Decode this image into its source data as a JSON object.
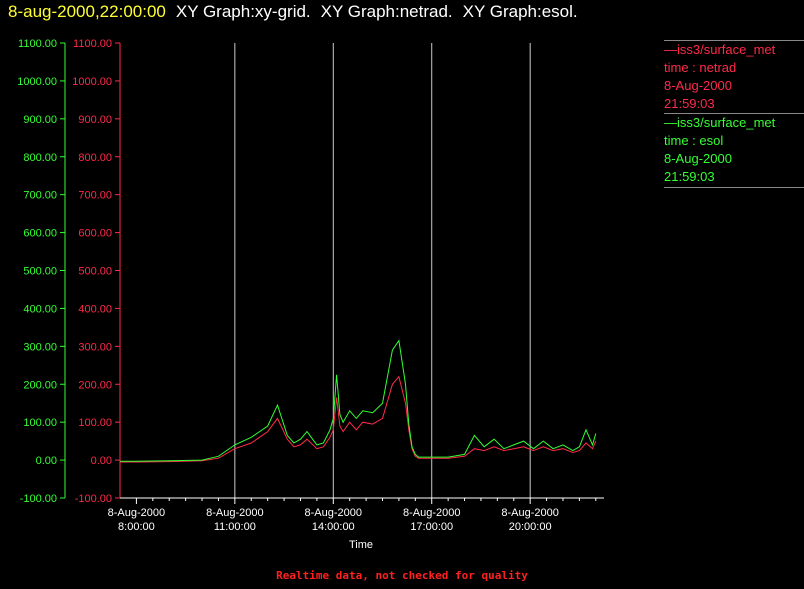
{
  "header": {
    "timestamp": "8-aug-2000,22:00:00",
    "graphs": [
      "XY Graph:xy-grid.",
      "XY Graph:netrad.",
      "XY Graph:esol."
    ]
  },
  "legend": [
    {
      "lines": [
        "—iss3/surface_met",
        "time : netrad",
        "8-Aug-2000",
        "21:59:03"
      ],
      "color": "#ff2a4a"
    },
    {
      "lines": [
        "—iss3/surface_met",
        "time : esol",
        "8-Aug-2000",
        "21:59:03"
      ],
      "color": "#33ff33"
    }
  ],
  "footer": "Realtime data, not checked for quality",
  "colors": {
    "netrad": "#ff2a4a",
    "esol": "#33ff33",
    "grid": "#ffffff",
    "background": "#000000"
  },
  "chart_data": {
    "type": "line",
    "xlabel": "Time",
    "ylim": [
      -100,
      1100
    ],
    "xlim": [
      7.5,
      22.25
    ],
    "grid": "vertical at time ticks",
    "yticks": [
      "-100.00",
      "0.00",
      "100.00",
      "200.00",
      "300.00",
      "400.00",
      "500.00",
      "600.00",
      "700.00",
      "800.00",
      "900.00",
      "1000.00",
      "1100.00"
    ],
    "xticks": [
      {
        "hour": 8,
        "date": "8-Aug-2000",
        "time": "8:00:00"
      },
      {
        "hour": 11,
        "date": "8-Aug-2000",
        "time": "11:00:00"
      },
      {
        "hour": 14,
        "date": "8-Aug-2000",
        "time": "14:00:00"
      },
      {
        "hour": 17,
        "date": "8-Aug-2000",
        "time": "17:00:00"
      },
      {
        "hour": 20,
        "date": "8-Aug-2000",
        "time": "20:00:00"
      }
    ],
    "series": [
      {
        "name": "time : netrad",
        "x": [
          7.5,
          8,
          9,
          10,
          10.5,
          11,
          11.5,
          12,
          12.3,
          12.6,
          12.8,
          13,
          13.2,
          13.5,
          13.7,
          13.9,
          14,
          14.1,
          14.2,
          14.3,
          14.5,
          14.7,
          14.9,
          15.2,
          15.5,
          15.8,
          16.0,
          16.2,
          16.3,
          16.4,
          16.5,
          16.6,
          16.75,
          17,
          17.5,
          18,
          18.3,
          18.6,
          18.9,
          19.2,
          19.5,
          19.8,
          20.1,
          20.4,
          20.7,
          21,
          21.3,
          21.5,
          21.7,
          21.9,
          22
        ],
        "y": [
          -5,
          -5,
          -4,
          -2,
          5,
          30,
          45,
          75,
          110,
          55,
          35,
          40,
          55,
          30,
          35,
          60,
          80,
          165,
          90,
          75,
          100,
          80,
          100,
          95,
          110,
          200,
          220,
          150,
          80,
          30,
          10,
          5,
          5,
          5,
          5,
          10,
          30,
          25,
          35,
          25,
          30,
          35,
          25,
          35,
          25,
          30,
          20,
          25,
          45,
          30,
          50
        ]
      },
      {
        "name": "time : esol",
        "x": [
          7.5,
          8,
          9,
          10,
          10.5,
          11,
          11.5,
          12,
          12.3,
          12.6,
          12.8,
          13,
          13.2,
          13.5,
          13.7,
          13.9,
          14,
          14.1,
          14.2,
          14.3,
          14.5,
          14.7,
          14.9,
          15.2,
          15.5,
          15.8,
          16.0,
          16.2,
          16.3,
          16.4,
          16.5,
          16.6,
          16.75,
          17,
          17.5,
          18,
          18.3,
          18.6,
          18.9,
          19.2,
          19.5,
          19.8,
          20.1,
          20.4,
          20.7,
          21,
          21.3,
          21.5,
          21.7,
          21.9,
          22
        ],
        "y": [
          -3,
          -3,
          -2,
          0,
          10,
          40,
          60,
          90,
          145,
          65,
          45,
          55,
          75,
          40,
          45,
          80,
          110,
          225,
          120,
          100,
          130,
          110,
          130,
          125,
          150,
          290,
          315,
          200,
          95,
          35,
          15,
          8,
          8,
          8,
          8,
          15,
          65,
          35,
          55,
          30,
          40,
          50,
          30,
          50,
          30,
          40,
          25,
          35,
          80,
          40,
          70
        ]
      }
    ]
  }
}
